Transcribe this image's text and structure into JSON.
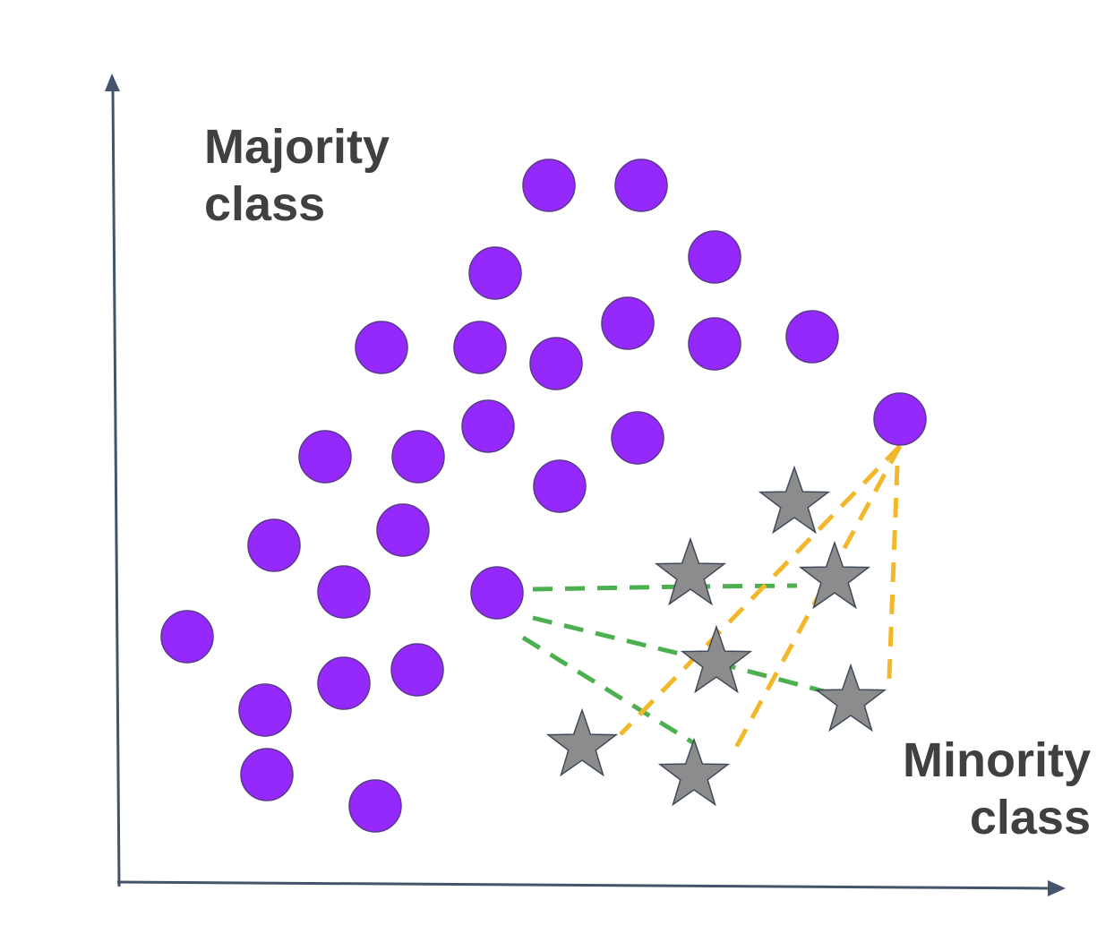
{
  "labels": {
    "majority": [
      "Majority",
      "class"
    ],
    "minority": [
      "Minority",
      "class"
    ]
  },
  "colors": {
    "axis": "#44546a",
    "majority_fill": "#9528fa",
    "majority_stroke": "#5a3a8a",
    "minority_fill": "#8c8c8c",
    "minority_stroke": "#404a5a",
    "green_link": "#4caf50",
    "orange_link": "#f3b72a",
    "label_text": "#404040"
  },
  "legend": {
    "majority_marker": "circle",
    "minority_marker": "star"
  }
}
